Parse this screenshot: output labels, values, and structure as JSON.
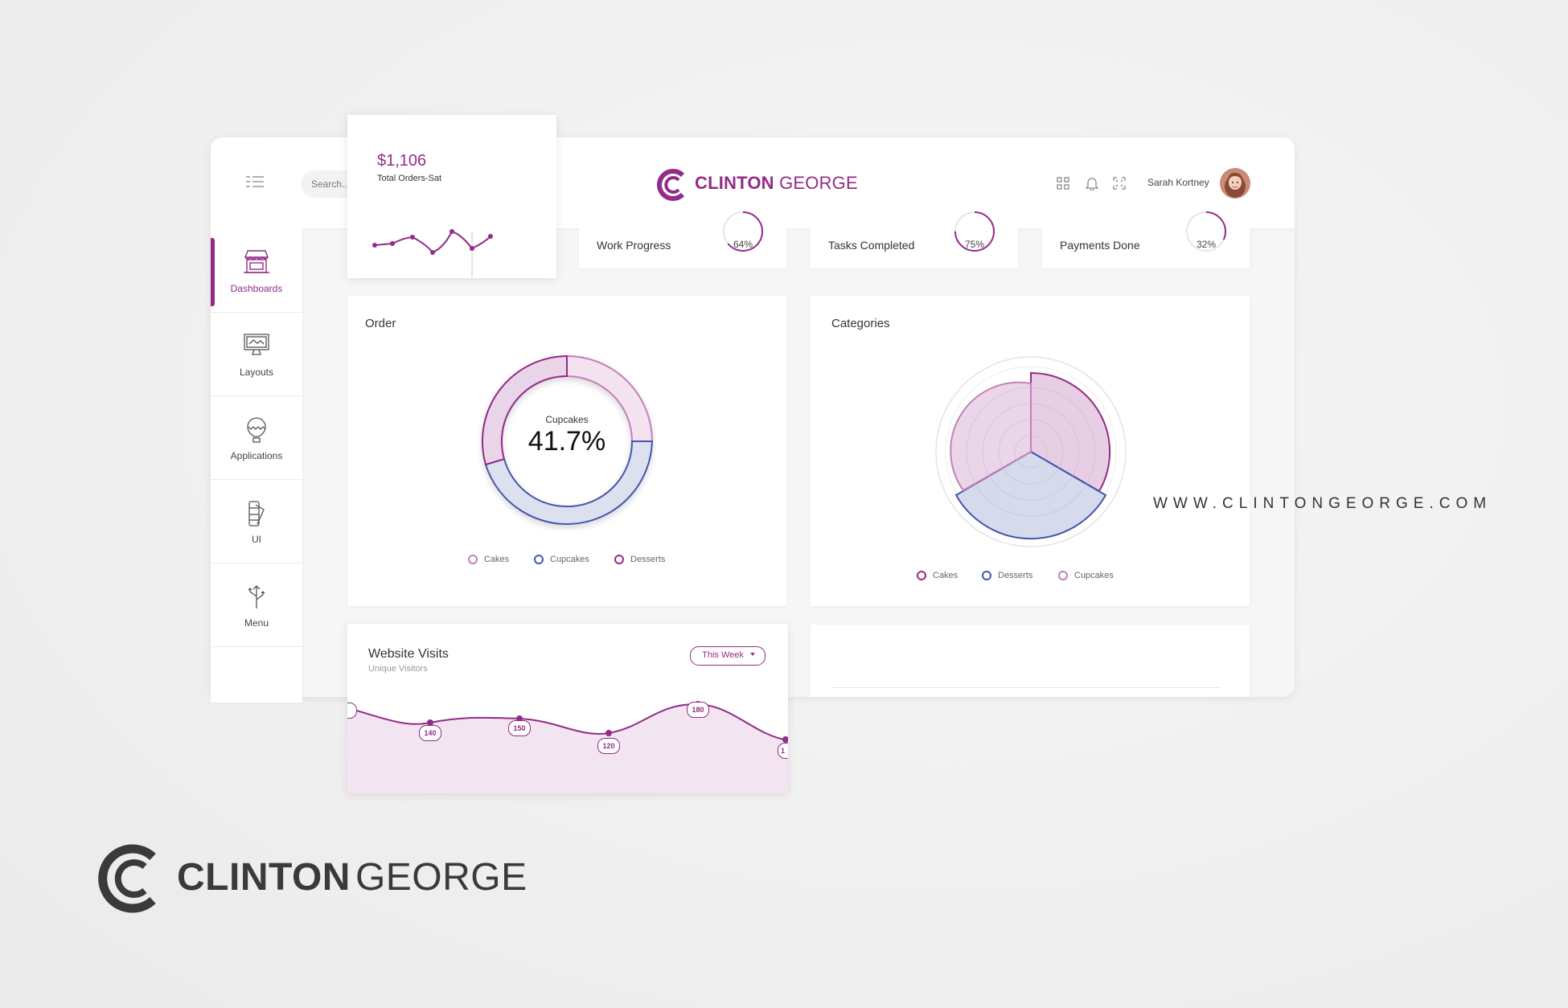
{
  "topbar": {
    "search_placeholder": "Search...",
    "brand_bold": "CLINTON",
    "brand_light": "GEORGE",
    "user_name": "Sarah Kortney"
  },
  "sidebar": {
    "items": [
      {
        "label": "Dashboards",
        "icon": "shop-icon"
      },
      {
        "label": "Layouts",
        "icon": "monitor-icon"
      },
      {
        "label": "Applications",
        "icon": "balloon-icon"
      },
      {
        "label": "UI",
        "icon": "palette-icon"
      },
      {
        "label": "Menu",
        "icon": "arrows-icon"
      }
    ]
  },
  "orders_card": {
    "amount": "$1,106",
    "label": "Total Orders-Sat"
  },
  "progress_cards": [
    {
      "label": "Work Progress",
      "value": "64%",
      "fraction": 0.64
    },
    {
      "label": "Tasks Completed",
      "value": "75%",
      "fraction": 0.75
    },
    {
      "label": "Payments Done",
      "value": "32%",
      "fraction": 0.32
    }
  ],
  "order_card": {
    "title": "Order",
    "center_label": "Cupcakes",
    "center_value": "41.7%",
    "legend": [
      "Cakes",
      "Cupcakes",
      "Desserts"
    ]
  },
  "categories_card": {
    "title": "Categories",
    "legend": [
      "Cakes",
      "Desserts",
      "Cupcakes"
    ]
  },
  "visits_card": {
    "title": "Website Visits",
    "subtitle": "Unique Visitors",
    "dropdown": "This Week",
    "point_labels": [
      "",
      "140",
      "150",
      "120",
      "180",
      "1"
    ]
  },
  "watermark": {
    "url": "WWW.CLINTONGEORGE.COM",
    "logo_bold": "CLINTON",
    "logo_light": "GEORGE"
  },
  "colors": {
    "primary": "#922c88",
    "secondary": "#4556ac",
    "light": "#d9a8d3"
  }
}
